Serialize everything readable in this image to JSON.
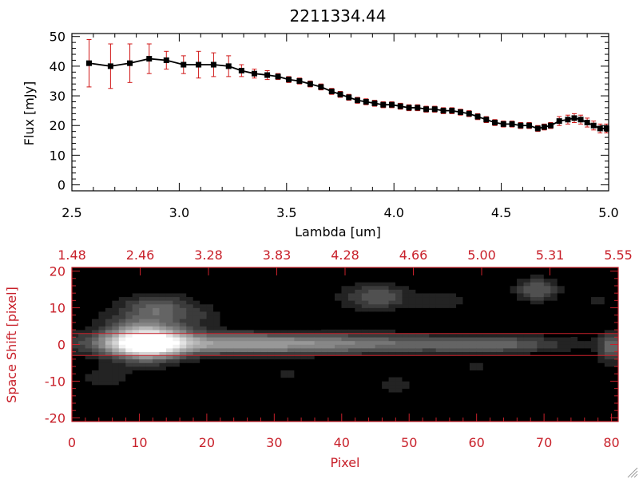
{
  "chart_data": [
    {
      "type": "line",
      "title": "2211334.44",
      "xlabel": "Lambda [um]",
      "ylabel": "Flux [mJy]",
      "xlim": [
        2.5,
        5.0
      ],
      "ylim": [
        -2,
        51
      ],
      "xticks": [
        "2.5",
        "3.0",
        "3.5",
        "4.0",
        "4.5",
        "5.0"
      ],
      "yticks": [
        "0",
        "10",
        "20",
        "30",
        "40",
        "50"
      ],
      "grid": false,
      "colors": {
        "line": "#000000",
        "marker": "#000000",
        "errorbar": "#d01818"
      },
      "series": [
        {
          "x": [
            2.58,
            2.68,
            2.77,
            2.86,
            2.94,
            3.02,
            3.09,
            3.16,
            3.23,
            3.29,
            3.35,
            3.41,
            3.46,
            3.51,
            3.56,
            3.61,
            3.66,
            3.71,
            3.75,
            3.79,
            3.83,
            3.87,
            3.91,
            3.95,
            3.99,
            4.03,
            4.07,
            4.11,
            4.15,
            4.19,
            4.23,
            4.27,
            4.31,
            4.35,
            4.39,
            4.43,
            4.47,
            4.51,
            4.55,
            4.59,
            4.63,
            4.67,
            4.7,
            4.73,
            4.77,
            4.81,
            4.84,
            4.87,
            4.9,
            4.93,
            4.96,
            4.99
          ],
          "y": [
            41,
            40,
            41,
            42.5,
            42,
            40.5,
            40.5,
            40.5,
            40,
            38.5,
            37.5,
            37,
            36.5,
            35.5,
            35,
            34,
            33,
            31.5,
            30.5,
            29.5,
            28.5,
            28,
            27.5,
            27,
            27,
            26.5,
            26,
            26,
            25.5,
            25.5,
            25,
            25,
            24.5,
            24,
            23,
            22,
            21,
            20.5,
            20.5,
            20,
            20,
            19,
            19.5,
            20,
            21.5,
            22,
            22.5,
            22,
            21,
            20,
            19,
            19
          ],
          "err": [
            8,
            7.5,
            6.5,
            5,
            3,
            3,
            4.5,
            4,
            3.5,
            2,
            1.5,
            1.5,
            1,
            1,
            1,
            1,
            1,
            1,
            1,
            1,
            1,
            1,
            1,
            1,
            1,
            1,
            1,
            1,
            1,
            1,
            1,
            1,
            1,
            1,
            1,
            1,
            1,
            1,
            1,
            1,
            1,
            1,
            1,
            1,
            1.5,
            1.5,
            1.5,
            1.5,
            1.5,
            1.5,
            1.5,
            1.5
          ]
        }
      ]
    },
    {
      "type": "heatmap",
      "xlabel": "Pixel",
      "ylabel": "Space Shift [pixel]",
      "xlim": [
        0,
        81
      ],
      "ylim": [
        -21,
        21
      ],
      "xticks": [
        "0",
        "10",
        "20",
        "30",
        "40",
        "50",
        "60",
        "70",
        "80"
      ],
      "yticks": [
        "-20",
        "-10",
        "0",
        "10",
        "20"
      ],
      "top_axis_ticks": [
        "1.48",
        "2.46",
        "3.28",
        "3.83",
        "4.28",
        "4.66",
        "5.00",
        "5.31",
        "5.55"
      ],
      "extraction_window": [
        -3,
        3
      ],
      "colormap": "grayscale",
      "colors": {
        "axes": "#c8202a",
        "window": "#c8202a"
      },
      "blobs": [
        {
          "x": 11,
          "y": 0.5,
          "sx": 3.5,
          "sy": 2.8,
          "v": 1.0
        },
        {
          "x": 22,
          "y": 0.3,
          "sx": 14,
          "sy": 2.0,
          "v": 0.42
        },
        {
          "x": 45,
          "y": 0.2,
          "sx": 18,
          "sy": 1.8,
          "v": 0.28
        },
        {
          "x": 63,
          "y": 0.0,
          "sx": 6,
          "sy": 1.5,
          "v": 0.18
        },
        {
          "x": 11,
          "y": 3.0,
          "sx": 5,
          "sy": 5.0,
          "v": 0.25
        },
        {
          "x": 13,
          "y": 10.0,
          "sx": 3.5,
          "sy": 2.5,
          "v": 0.26
        },
        {
          "x": 45,
          "y": 13.0,
          "sx": 3.5,
          "sy": 2.5,
          "v": 0.28
        },
        {
          "x": 69,
          "y": 15.0,
          "sx": 2.2,
          "sy": 2.2,
          "v": 0.3
        },
        {
          "x": 80,
          "y": -1.0,
          "sx": 1.3,
          "sy": 3.0,
          "v": 0.3
        },
        {
          "x": 55,
          "y": 12.0,
          "sx": 3,
          "sy": 2,
          "v": 0.12
        },
        {
          "x": 5,
          "y": -9.0,
          "sx": 2.5,
          "sy": 2,
          "v": 0.12
        },
        {
          "x": 48,
          "y": -11.0,
          "sx": 1.5,
          "sy": 1.5,
          "v": 0.15
        },
        {
          "x": 78,
          "y": 12.0,
          "sx": 2,
          "sy": 2,
          "v": 0.08
        },
        {
          "x": 32,
          "y": -8.0,
          "sx": 2,
          "sy": 1.5,
          "v": 0.08
        },
        {
          "x": 60,
          "y": -6.0,
          "sx": 2,
          "sy": 1.5,
          "v": 0.08
        },
        {
          "x": 20,
          "y": 8.0,
          "sx": 2,
          "sy": 2,
          "v": 0.08
        },
        {
          "x": 28,
          "y": -17.0,
          "sx": 2,
          "sy": 1.5,
          "v": 0.07
        }
      ]
    }
  ]
}
